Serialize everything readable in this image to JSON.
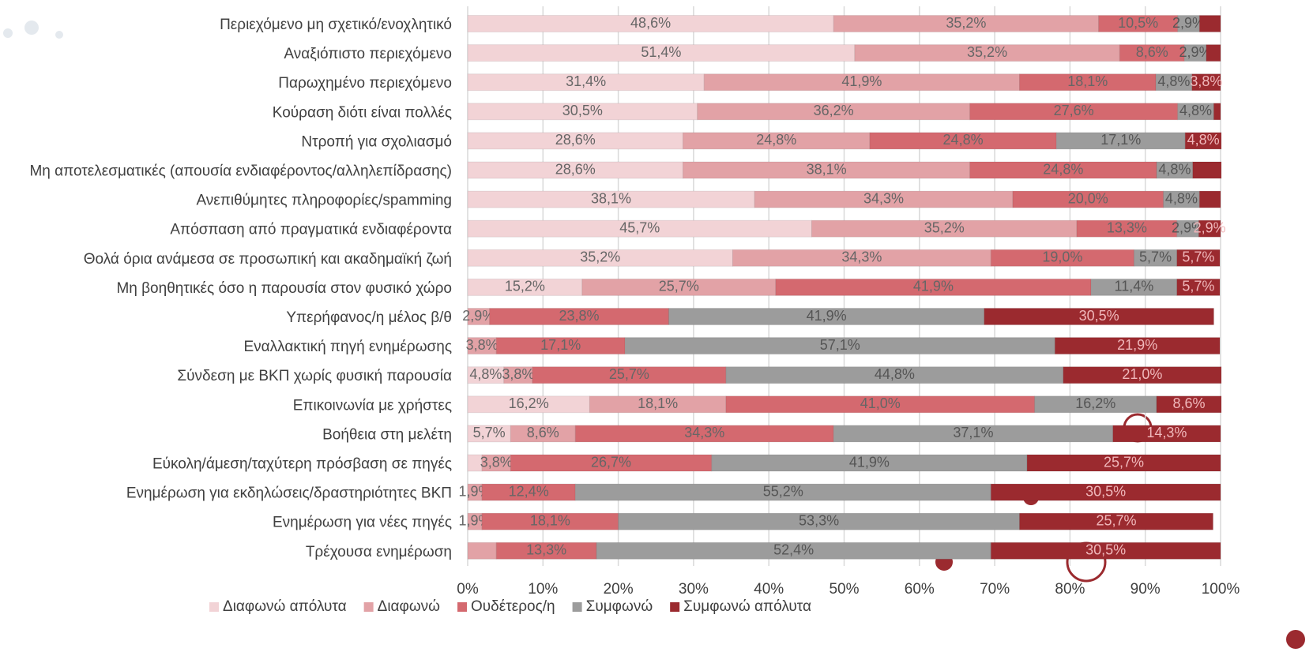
{
  "chart_data": {
    "type": "stacked-barh",
    "categories": [
      "Περιεχόμενο μη σχετικό/ενοχλητικό",
      "Αναξιόπιστο περιεχόμενο",
      "Παρωχημένο περιεχόμενο",
      "Κούραση διότι είναι πολλές",
      "Ντροπή για σχολιασμό",
      "Μη αποτελεσματικές (απουσία ενδιαφέροντος/αλληλεπίδρασης)",
      "Ανεπιθύμητες πληροφορίες/spamming",
      "Απόσπαση από πραγματικά ενδιαφέροντα",
      "Θολά όρια ανάμεσα σε προσωπική και ακαδημαϊκή ζωή",
      "Μη βοηθητικές όσο η παρουσία στον φυσικό χώρο",
      "Υπερήφανος/η μέλος β/θ",
      "Εναλλακτική πηγή ενημέρωσης",
      "Σύνδεση με ΒΚΠ χωρίς φυσική παρουσία",
      "Επικοινωνία με χρήστες",
      "Βοήθεια στη μελέτη",
      "Εύκολη/άμεση/ταχύτερη πρόσβαση σε πηγές",
      "Ενημέρωση για εκδηλώσεις/δραστηριότητες ΒΚΠ",
      "Ενημέρωση για νέες πηγές",
      "Τρέχουσα ενημέρωση"
    ],
    "series": [
      {
        "name": "Διαφωνώ απόλυτα",
        "color": "#f2d3d6",
        "label_color": "#666666",
        "values": [
          48.6,
          51.4,
          31.4,
          30.5,
          28.6,
          28.6,
          38.1,
          45.7,
          35.2,
          15.2,
          null,
          null,
          4.8,
          16.2,
          5.7,
          1.9,
          null,
          null,
          null
        ],
        "value_labels": [
          "48,6%",
          "51,4%",
          "31,4%",
          "30,5%",
          "28,6%",
          "28,6%",
          "38,1%",
          "45,7%",
          "35,2%",
          "15,2%",
          null,
          null,
          "4,8%",
          "16,2%",
          "5,7%",
          null,
          null,
          null,
          null
        ]
      },
      {
        "name": "Διαφωνώ",
        "color": "#e2a2a6",
        "label_color": "#666666",
        "values": [
          35.2,
          35.2,
          41.9,
          36.2,
          24.8,
          38.1,
          34.3,
          35.2,
          34.3,
          25.7,
          2.9,
          3.8,
          3.8,
          18.1,
          8.6,
          3.8,
          1.9,
          1.9,
          3.8
        ],
        "value_labels": [
          "35,2%",
          "35,2%",
          "41,9%",
          "36,2%",
          "24,8%",
          "38,1%",
          "34,3%",
          "35,2%",
          "34,3%",
          "25,7%",
          "2,9%",
          "3,8%",
          "3,8%",
          "18,1%",
          "8,6%",
          "3,8%",
          "1,9%",
          "1,9%",
          null
        ]
      },
      {
        "name": "Ουδέτερος/η",
        "color": "#d4696f",
        "label_color": "#666666",
        "values": [
          10.5,
          8.6,
          18.1,
          27.6,
          24.8,
          24.8,
          20.0,
          13.3,
          19.0,
          41.9,
          23.8,
          17.1,
          25.7,
          41.0,
          34.3,
          26.7,
          12.4,
          18.1,
          13.3
        ],
        "value_labels": [
          "10,5%",
          "8,6%",
          "18,1%",
          "27,6%",
          "24,8%",
          "24,8%",
          "20,0%",
          "13,3%",
          "19,0%",
          "41,9%",
          "23,8%",
          "17,1%",
          "25,7%",
          "41,0%",
          "34,3%",
          "26,7%",
          "12,4%",
          "18,1%",
          "13,3%"
        ]
      },
      {
        "name": "Συμφωνώ",
        "color": "#9c9c9c",
        "label_color": "#555555",
        "values": [
          2.9,
          2.9,
          4.8,
          4.8,
          17.1,
          4.8,
          4.8,
          2.9,
          5.7,
          11.4,
          41.9,
          57.1,
          44.8,
          16.2,
          37.1,
          41.9,
          55.2,
          53.3,
          52.4
        ],
        "value_labels": [
          "2,9%",
          "2,9%",
          "4,8%",
          "4,8%",
          "17,1%",
          "4,8%",
          "4,8%",
          "2,9%",
          "5,7%",
          "11,4%",
          "41,9%",
          "57,1%",
          "44,8%",
          "16,2%",
          "37,1%",
          "41,9%",
          "55,2%",
          "53,3%",
          "52,4%"
        ]
      },
      {
        "name": "Συμφωνώ απόλυτα",
        "color": "#9b2a2f",
        "label_color": "#f0b8bb",
        "values": [
          2.8,
          1.9,
          3.8,
          0.9,
          4.8,
          3.8,
          2.8,
          2.9,
          5.7,
          5.7,
          30.5,
          21.9,
          21.0,
          8.6,
          14.3,
          25.7,
          30.5,
          25.7,
          30.5
        ],
        "value_labels": [
          null,
          null,
          "3,8%",
          null,
          "4,8%",
          null,
          null,
          "2,9%",
          "5,7%",
          "5,7%",
          "30,5%",
          "21,9%",
          "21,0%",
          "8,6%",
          "14,3%",
          "25,7%",
          "30,5%",
          "25,7%",
          "30,5%"
        ]
      }
    ],
    "xlim": [
      0,
      100
    ],
    "xticks": [
      {
        "value": 0,
        "label": "0%"
      },
      {
        "value": 10,
        "label": "10%"
      },
      {
        "value": 20,
        "label": "20%"
      },
      {
        "value": 30,
        "label": "30%"
      },
      {
        "value": 40,
        "label": "40%"
      },
      {
        "value": 50,
        "label": "50%"
      },
      {
        "value": 60,
        "label": "60%"
      },
      {
        "value": 70,
        "label": "70%"
      },
      {
        "value": 80,
        "label": "80%"
      },
      {
        "value": 90,
        "label": "90%"
      },
      {
        "value": 100,
        "label": "100%"
      }
    ],
    "grid": true,
    "legend": "bottom"
  }
}
